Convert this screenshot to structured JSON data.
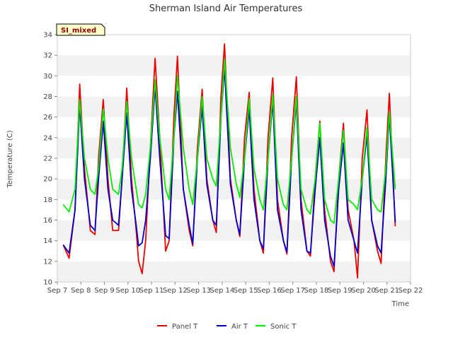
{
  "chart_data": {
    "type": "line",
    "title": "Sherman Island Air Temperatures",
    "xlabel": "Time",
    "ylabel": "Temperature (C)",
    "xlim": [
      7,
      22
    ],
    "ylim": [
      10,
      34
    ],
    "x_ticks": [
      {
        "value": 7,
        "label": "Sep 7"
      },
      {
        "value": 8,
        "label": "Sep 8"
      },
      {
        "value": 9,
        "label": "Sep 9"
      },
      {
        "value": 10,
        "label": "Sep 10"
      },
      {
        "value": 11,
        "label": "Sep 11"
      },
      {
        "value": 12,
        "label": "Sep 12"
      },
      {
        "value": 13,
        "label": "Sep 13"
      },
      {
        "value": 14,
        "label": "Sep 14"
      },
      {
        "value": 15,
        "label": "Sep 15"
      },
      {
        "value": 16,
        "label": "Sep 16"
      },
      {
        "value": 17,
        "label": "Sep 17"
      },
      {
        "value": 18,
        "label": "Sep 18"
      },
      {
        "value": 19,
        "label": "Sep 19"
      },
      {
        "value": 20,
        "label": "Sep 20"
      },
      {
        "value": 21,
        "label": "Sep 21"
      },
      {
        "value": 22,
        "label": "Sep 22"
      }
    ],
    "y_ticks": [
      10,
      12,
      14,
      16,
      18,
      20,
      22,
      24,
      26,
      28,
      30,
      32,
      34
    ],
    "grid": "horizontal bands",
    "legend_position": "bottom-center",
    "annotation": "SI_mixed",
    "series": [
      {
        "name": "Panel T",
        "color": "#ee0000",
        "x": [
          7.25,
          7.5,
          7.75,
          7.95,
          8.15,
          8.4,
          8.6,
          8.75,
          8.95,
          9.15,
          9.35,
          9.6,
          9.75,
          9.95,
          10.15,
          10.35,
          10.45,
          10.6,
          10.75,
          10.95,
          11.15,
          11.35,
          11.6,
          11.75,
          11.95,
          12.1,
          12.35,
          12.6,
          12.75,
          12.95,
          13.15,
          13.35,
          13.6,
          13.75,
          13.95,
          14.1,
          14.35,
          14.6,
          14.75,
          14.95,
          15.15,
          15.35,
          15.6,
          15.75,
          15.95,
          16.15,
          16.35,
          16.6,
          16.75,
          16.95,
          17.15,
          17.35,
          17.6,
          17.75,
          17.95,
          18.15,
          18.35,
          18.6,
          18.75,
          18.95,
          19.15,
          19.35,
          19.6,
          19.75,
          19.95,
          20.15,
          20.35,
          20.6,
          20.75,
          20.95,
          21.1,
          21.35
        ],
        "y": [
          13.6,
          12.3,
          17.0,
          29.2,
          21.0,
          15.0,
          14.6,
          22.0,
          27.7,
          20.0,
          15.0,
          15.0,
          20.0,
          28.8,
          20.0,
          15.0,
          12.0,
          10.8,
          14.0,
          23.0,
          31.7,
          24.0,
          13.0,
          14.0,
          26.0,
          31.9,
          19.0,
          15.0,
          13.5,
          23.0,
          28.7,
          20.0,
          16.0,
          14.8,
          28.0,
          33.1,
          20.0,
          16.0,
          14.4,
          24.0,
          28.4,
          19.0,
          14.0,
          12.8,
          24.0,
          29.8,
          18.0,
          14.0,
          12.7,
          24.0,
          29.9,
          18.0,
          13.0,
          12.5,
          20.0,
          25.6,
          17.0,
          12.0,
          11.0,
          20.0,
          25.4,
          17.0,
          14.0,
          10.4,
          22.0,
          26.7,
          16.0,
          13.0,
          11.8,
          22.0,
          28.3,
          15.4
        ]
      },
      {
        "name": "Air T",
        "color": "#0000cc",
        "x": [
          7.25,
          7.5,
          7.75,
          7.95,
          8.15,
          8.4,
          8.6,
          8.75,
          8.95,
          9.15,
          9.35,
          9.6,
          9.75,
          9.95,
          10.15,
          10.35,
          10.45,
          10.6,
          10.75,
          10.95,
          11.15,
          11.35,
          11.6,
          11.75,
          11.95,
          12.1,
          12.35,
          12.6,
          12.75,
          12.95,
          13.15,
          13.35,
          13.6,
          13.75,
          13.95,
          14.1,
          14.35,
          14.6,
          14.75,
          14.95,
          15.15,
          15.35,
          15.6,
          15.75,
          15.95,
          16.15,
          16.35,
          16.6,
          16.75,
          16.95,
          17.15,
          17.35,
          17.6,
          17.75,
          17.95,
          18.15,
          18.35,
          18.6,
          18.75,
          18.95,
          19.15,
          19.35,
          19.6,
          19.75,
          19.95,
          20.15,
          20.35,
          20.6,
          20.75,
          20.95,
          21.1,
          21.35
        ],
        "y": [
          13.6,
          12.8,
          17.0,
          27.2,
          20.0,
          15.5,
          15.0,
          20.0,
          25.6,
          19.0,
          16.0,
          15.5,
          20.0,
          26.4,
          19.0,
          15.5,
          13.5,
          13.8,
          16.0,
          22.0,
          29.0,
          22.0,
          14.5,
          14.2,
          24.0,
          28.5,
          19.0,
          15.5,
          13.7,
          22.0,
          27.0,
          19.5,
          16.0,
          15.5,
          26.0,
          30.8,
          19.5,
          16.0,
          14.6,
          22.0,
          26.8,
          18.0,
          14.0,
          13.2,
          22.0,
          27.6,
          17.0,
          14.0,
          12.9,
          22.0,
          27.5,
          17.0,
          13.0,
          12.8,
          19.0,
          24.0,
          16.0,
          12.5,
          11.5,
          19.0,
          23.5,
          16.0,
          14.0,
          12.8,
          20.0,
          24.3,
          16.0,
          13.5,
          12.8,
          20.0,
          26.3,
          15.8
        ]
      },
      {
        "name": "Sonic T",
        "color": "#00ee00",
        "x": [
          7.25,
          7.5,
          7.75,
          7.95,
          8.15,
          8.4,
          8.6,
          8.75,
          8.95,
          9.15,
          9.35,
          9.6,
          9.75,
          9.95,
          10.15,
          10.35,
          10.45,
          10.6,
          10.75,
          10.95,
          11.15,
          11.35,
          11.6,
          11.75,
          11.95,
          12.1,
          12.35,
          12.6,
          12.75,
          12.95,
          13.15,
          13.35,
          13.6,
          13.75,
          13.95,
          14.1,
          14.35,
          14.6,
          14.75,
          14.95,
          15.15,
          15.35,
          15.6,
          15.75,
          15.95,
          16.15,
          16.35,
          16.6,
          16.75,
          16.95,
          17.15,
          17.35,
          17.6,
          17.75,
          17.95,
          18.15,
          18.35,
          18.6,
          18.75,
          18.95,
          19.15,
          19.35,
          19.6,
          19.75,
          19.95,
          20.15,
          20.35,
          20.6,
          20.75,
          20.95,
          21.1,
          21.35
        ],
        "y": [
          17.5,
          16.8,
          19.0,
          27.7,
          22.0,
          19.0,
          18.5,
          21.0,
          26.8,
          22.0,
          19.0,
          18.5,
          21.0,
          27.5,
          22.0,
          19.0,
          17.5,
          17.2,
          18.5,
          23.0,
          29.6,
          24.0,
          19.0,
          18.0,
          24.0,
          30.0,
          23.0,
          19.0,
          17.5,
          22.0,
          28.0,
          22.0,
          20.0,
          19.3,
          26.0,
          31.6,
          23.0,
          19.5,
          18.2,
          22.0,
          27.8,
          21.0,
          18.0,
          17.0,
          22.0,
          28.2,
          20.0,
          17.5,
          17.0,
          22.0,
          28.0,
          19.0,
          17.0,
          16.6,
          20.0,
          25.4,
          18.0,
          16.0,
          15.7,
          20.0,
          24.7,
          18.0,
          17.5,
          17.0,
          20.0,
          25.0,
          18.0,
          17.0,
          16.8,
          21.0,
          26.5,
          19.0
        ]
      }
    ]
  }
}
